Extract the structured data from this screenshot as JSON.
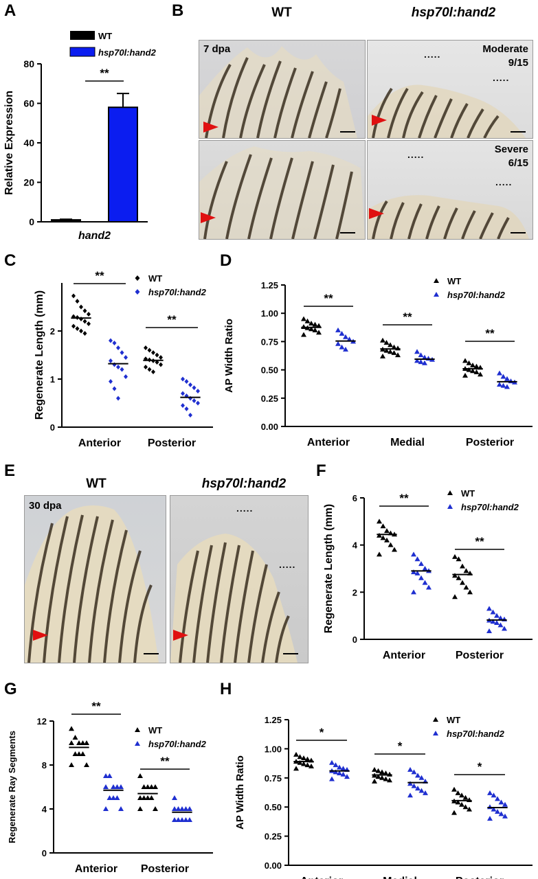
{
  "panels": {
    "A": "A",
    "B": "B",
    "C": "C",
    "D": "D",
    "E": "E",
    "F": "F",
    "G": "G",
    "H": "H"
  },
  "colors": {
    "wt": "#000000",
    "tg": "#1f2fd0",
    "tg_bar": "#0b1df0",
    "arrow": "#e01010"
  },
  "legend": {
    "wt": "WT",
    "tg": "hsp70l:hand2"
  },
  "sig": {
    "double": "**",
    "single": "*"
  },
  "panelB": {
    "col_wt": "WT",
    "col_tg": "hsp70l:hand2",
    "dpa": "7 dpa",
    "moderate": "Moderate",
    "moderate_frac": "9/15",
    "severe": "Severe",
    "severe_frac": "6/15",
    "dots": "....."
  },
  "panelE": {
    "col_wt": "WT",
    "col_tg": "hsp70l:hand2",
    "dpa": "30 dpa",
    "dots": "....."
  },
  "chart_data": [
    {
      "id": "A",
      "type": "bar",
      "title": "",
      "xlabel": "hand2",
      "ylabel": "Relative Expression",
      "ylim": [
        0,
        80
      ],
      "yticks": [
        0,
        20,
        40,
        60,
        80
      ],
      "series": [
        {
          "name": "WT",
          "values": [
            1
          ],
          "error": [
            0.3
          ]
        },
        {
          "name": "hsp70l:hand2",
          "values": [
            58
          ],
          "error": [
            7
          ]
        }
      ],
      "significance": "**"
    },
    {
      "id": "C",
      "type": "scatter",
      "ylabel": "Regenerate Length (mm)",
      "ylim": [
        0,
        3
      ],
      "yticks": [
        0,
        1,
        2
      ],
      "groups": [
        "Anterior",
        "Posterior"
      ],
      "marker": "diamond",
      "series": [
        {
          "name": "WT",
          "median": [
            2.27,
            1.39
          ],
          "points": [
            [
              2.73,
              2.62,
              2.5,
              2.42,
              2.35,
              2.3,
              2.28,
              2.25,
              2.2,
              2.15,
              2.1,
              2.05,
              2.0,
              1.95
            ],
            [
              1.65,
              1.6,
              1.55,
              1.5,
              1.45,
              1.42,
              1.4,
              1.38,
              1.35,
              1.3,
              1.25,
              1.2,
              1.15
            ]
          ]
        },
        {
          "name": "hsp70l:hand2",
          "median": [
            1.32,
            0.62
          ],
          "points": [
            [
              1.8,
              1.75,
              1.65,
              1.55,
              1.45,
              1.38,
              1.3,
              1.25,
              1.2,
              1.05,
              0.95,
              0.8,
              0.6
            ],
            [
              1.0,
              0.95,
              0.88,
              0.82,
              0.75,
              0.7,
              0.65,
              0.6,
              0.55,
              0.5,
              0.45,
              0.38,
              0.25
            ]
          ]
        }
      ],
      "significance": [
        "**",
        "**"
      ]
    },
    {
      "id": "D",
      "type": "scatter",
      "ylabel": "AP Width Ratio",
      "ylim": [
        0,
        1.25
      ],
      "yticks": [
        "0.00",
        "0.25",
        "0.50",
        "0.75",
        "1.00",
        "1.25"
      ],
      "groups": [
        "Anterior",
        "Medial",
        "Posterior"
      ],
      "marker": "triangle",
      "series": [
        {
          "name": "WT",
          "median": [
            0.875,
            0.685,
            0.51
          ],
          "points": [
            [
              0.95,
              0.93,
              0.91,
              0.9,
              0.89,
              0.88,
              0.87,
              0.86,
              0.85,
              0.83,
              0.81
            ],
            [
              0.76,
              0.74,
              0.72,
              0.7,
              0.69,
              0.68,
              0.67,
              0.66,
              0.65,
              0.63,
              0.62
            ],
            [
              0.58,
              0.56,
              0.54,
              0.53,
              0.52,
              0.51,
              0.5,
              0.49,
              0.48,
              0.46,
              0.45
            ]
          ]
        },
        {
          "name": "hsp70l:hand2",
          "median": [
            0.755,
            0.595,
            0.395
          ],
          "points": [
            [
              0.85,
              0.82,
              0.79,
              0.77,
              0.75,
              0.73,
              0.7,
              0.68
            ],
            [
              0.66,
              0.63,
              0.61,
              0.6,
              0.59,
              0.58,
              0.57,
              0.56
            ],
            [
              0.47,
              0.44,
              0.42,
              0.4,
              0.39,
              0.37,
              0.36,
              0.35
            ]
          ]
        }
      ],
      "significance": [
        "**",
        "**",
        "**"
      ]
    },
    {
      "id": "F",
      "type": "scatter",
      "ylabel": "Regenerate Length (mm)",
      "ylim": [
        0,
        6
      ],
      "yticks": [
        0,
        2,
        4,
        6
      ],
      "groups": [
        "Anterior",
        "Posterior"
      ],
      "marker": "triangle",
      "series": [
        {
          "name": "WT",
          "median": [
            4.45,
            2.75
          ],
          "points": [
            [
              5.0,
              4.8,
              4.6,
              4.5,
              4.45,
              4.4,
              4.3,
              4.2,
              4.0,
              3.8,
              3.6
            ],
            [
              3.5,
              3.4,
              3.1,
              2.9,
              2.8,
              2.7,
              2.6,
              2.4,
              2.2,
              2.0,
              1.8
            ]
          ]
        },
        {
          "name": "hsp70l:hand2",
          "median": [
            2.9,
            0.82
          ],
          "points": [
            [
              3.6,
              3.4,
              3.2,
              3.0,
              2.9,
              2.85,
              2.8,
              2.6,
              2.4,
              2.2,
              2.0
            ],
            [
              1.3,
              1.15,
              1.0,
              0.9,
              0.85,
              0.8,
              0.75,
              0.7,
              0.6,
              0.45,
              0.35
            ]
          ]
        }
      ],
      "significance": [
        "**",
        "**"
      ]
    },
    {
      "id": "G",
      "type": "scatter",
      "ylabel": "Regenerate Ray Segments",
      "ylim": [
        0,
        12
      ],
      "yticks": [
        0,
        4,
        8,
        12
      ],
      "groups": [
        "Anterior",
        "Posterior"
      ],
      "marker": "triangle",
      "series": [
        {
          "name": "WT",
          "median": [
            9.6,
            5.4
          ],
          "points": [
            [
              11.3,
              10.5,
              10.0,
              10.0,
              10.0,
              10.0,
              9.0,
              9.0,
              9.0,
              8.0,
              8.0
            ],
            [
              7.0,
              6.0,
              6.0,
              6.0,
              6.0,
              5.0,
              5.0,
              5.0,
              5.0,
              4.0,
              4.0
            ]
          ]
        },
        {
          "name": "hsp70l:hand2",
          "median": [
            5.7,
            3.7
          ],
          "points": [
            [
              7.0,
              7.0,
              6.0,
              6.0,
              6.0,
              6.0,
              5.0,
              5.0,
              5.0,
              4.0,
              4.0
            ],
            [
              5.0,
              4.0,
              4.0,
              4.0,
              4.0,
              4.0,
              3.0,
              3.0,
              3.0,
              3.0,
              3.0
            ]
          ]
        }
      ],
      "significance": [
        "**",
        "**"
      ]
    },
    {
      "id": "H",
      "type": "scatter",
      "ylabel": "AP Width Ratio",
      "ylim": [
        0,
        1.25
      ],
      "yticks": [
        "0.00",
        "0.25",
        "0.50",
        "0.75",
        "1.00",
        "1.25"
      ],
      "groups": [
        "Anterior",
        "Medial",
        "Posterior"
      ],
      "marker": "triangle",
      "series": [
        {
          "name": "WT",
          "median": [
            0.89,
            0.775,
            0.555
          ],
          "points": [
            [
              0.95,
              0.93,
              0.92,
              0.91,
              0.9,
              0.89,
              0.88,
              0.87,
              0.86,
              0.85,
              0.83
            ],
            [
              0.82,
              0.81,
              0.8,
              0.79,
              0.78,
              0.77,
              0.76,
              0.75,
              0.74,
              0.73,
              0.72
            ],
            [
              0.65,
              0.62,
              0.6,
              0.58,
              0.56,
              0.55,
              0.54,
              0.52,
              0.5,
              0.48,
              0.45
            ]
          ]
        },
        {
          "name": "hsp70l:hand2",
          "median": [
            0.81,
            0.71,
            0.495
          ],
          "points": [
            [
              0.88,
              0.86,
              0.84,
              0.83,
              0.82,
              0.81,
              0.8,
              0.79,
              0.78,
              0.76,
              0.74
            ],
            [
              0.82,
              0.8,
              0.77,
              0.75,
              0.72,
              0.7,
              0.68,
              0.66,
              0.64,
              0.62,
              0.6
            ],
            [
              0.62,
              0.6,
              0.57,
              0.54,
              0.52,
              0.5,
              0.48,
              0.46,
              0.44,
              0.42,
              0.4
            ]
          ]
        }
      ],
      "significance": [
        "*",
        "*",
        "*"
      ]
    }
  ]
}
